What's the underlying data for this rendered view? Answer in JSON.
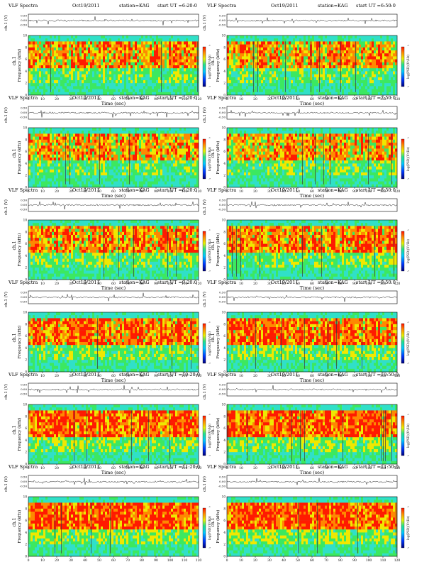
{
  "page": {
    "title_prefix": "VLF Spectra",
    "date": "Oct19/2011",
    "station": "station=KAG",
    "start_label": "start UT =",
    "wave_ylabel": "ch.1 (V)",
    "wave_ticks": [
      "0.50",
      "0.00",
      "-0.50"
    ],
    "spec_ylabel_top": "ch.1",
    "spec_ylabel": "Frequency  (kHz)",
    "spec_ticks": [
      "10",
      "8",
      "6",
      "4",
      "2",
      "0"
    ],
    "xlabel": "Time  (sec)",
    "xticks": [
      "0",
      "10",
      "20",
      "30",
      "40",
      "50",
      "60",
      "70",
      "80",
      "90",
      "100",
      "110",
      "120"
    ],
    "cbar_label": "log(PSD)(V²/Hz)",
    "cbar_ticks": [
      "-1",
      "-7"
    ]
  },
  "chart_data": [
    {
      "type": "heatmap",
      "start_ut": "6:20:0",
      "x": [
        0,
        120
      ],
      "ylim": [
        0,
        10
      ],
      "intensity": 0.45,
      "dark_freq_khz": 1.6
    },
    {
      "type": "heatmap",
      "start_ut": "6:50:0",
      "x": [
        0,
        120
      ],
      "ylim": [
        0,
        10
      ],
      "intensity": 0.42,
      "dark_freq_khz": 1.6
    },
    {
      "type": "heatmap",
      "start_ut": "7:20:0",
      "x": [
        0,
        120
      ],
      "ylim": [
        0,
        10
      ],
      "intensity": 0.4,
      "dark_freq_khz": 1.6
    },
    {
      "type": "heatmap",
      "start_ut": "7:50:0",
      "x": [
        0,
        120
      ],
      "ylim": [
        0,
        10
      ],
      "intensity": 0.4,
      "dark_freq_khz": 1.6
    },
    {
      "type": "heatmap",
      "start_ut": "8:20:0",
      "x": [
        0,
        120
      ],
      "ylim": [
        0,
        10
      ],
      "intensity": 0.55,
      "dark_freq_khz": 1.6
    },
    {
      "type": "heatmap",
      "start_ut": "8:50:0",
      "x": [
        0,
        120
      ],
      "ylim": [
        0,
        10
      ],
      "intensity": 0.58,
      "dark_freq_khz": 1.6
    },
    {
      "type": "heatmap",
      "start_ut": "9:20:0",
      "x": [
        0,
        120
      ],
      "ylim": [
        0,
        10
      ],
      "intensity": 0.65,
      "dark_freq_khz": 1.6
    },
    {
      "type": "heatmap",
      "start_ut": "9:50:0",
      "x": [
        0,
        120
      ],
      "ylim": [
        0,
        10
      ],
      "intensity": 0.65,
      "dark_freq_khz": 1.6
    },
    {
      "type": "heatmap",
      "start_ut": "10:20:0",
      "x": [
        0,
        120
      ],
      "ylim": [
        0,
        10
      ],
      "intensity": 0.75,
      "dark_freq_khz": 1.6
    },
    {
      "type": "heatmap",
      "start_ut": "10:50:0",
      "x": [
        0,
        120
      ],
      "ylim": [
        0,
        10
      ],
      "intensity": 0.75,
      "dark_freq_khz": 1.6
    },
    {
      "type": "heatmap",
      "start_ut": "11:20:0",
      "x": [
        0,
        120
      ],
      "ylim": [
        0,
        10
      ],
      "intensity": 0.78,
      "dark_freq_khz": 1.6
    },
    {
      "type": "heatmap",
      "start_ut": "11:50:0",
      "x": [
        0,
        120
      ],
      "ylim": [
        0,
        10
      ],
      "intensity": 0.78,
      "dark_freq_khz": 1.6
    }
  ]
}
